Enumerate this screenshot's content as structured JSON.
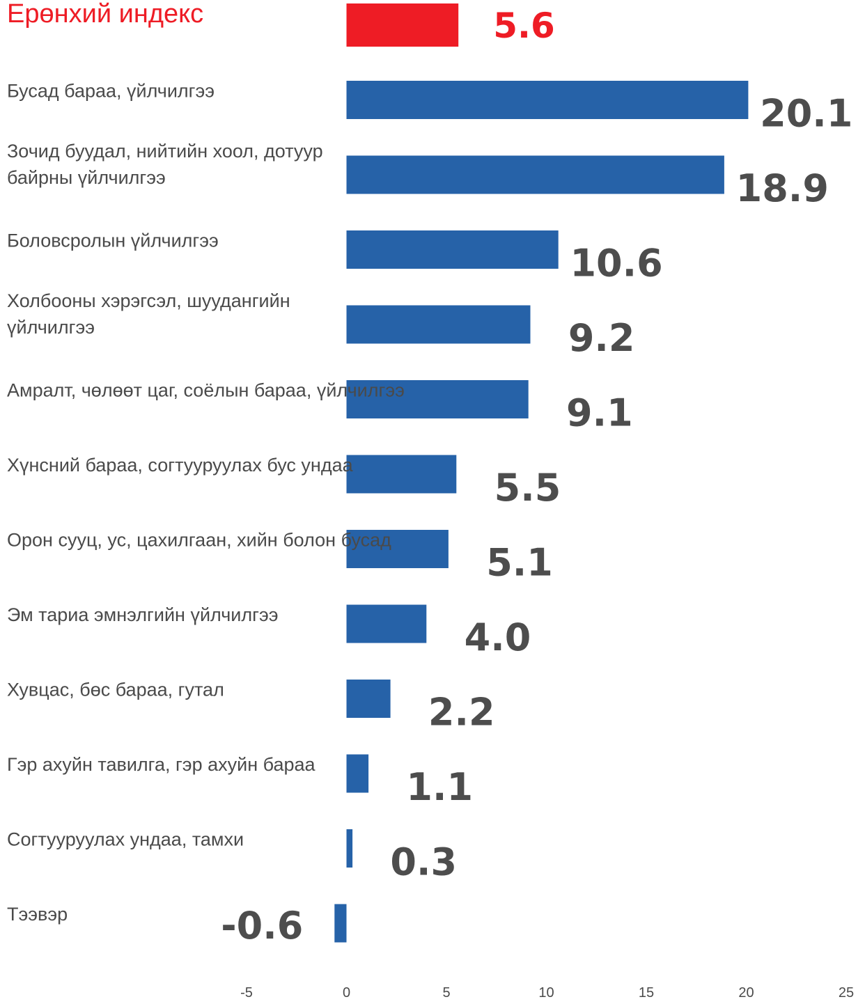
{
  "chart_data": {
    "type": "bar",
    "orientation": "horizontal",
    "categories": [
      "Ерөнхий индекс",
      "Бусад бараа, үйлчилгээ",
      "Зочид буудал, нийтийн хоол, дотуур байрны үйлчилгээ",
      "Боловсролын үйлчилгээ",
      "Холбооны хэрэгсэл, шуудангийн үйлчилгээ",
      "Амралт, чөлөөт цаг, соёлын бараа,  үйлчилгээ",
      "Хүнсний бараа, согтууруулах бус ундаа",
      "Орон сууц, ус, цахилгаан, хийн болон бусад",
      "Эм тариа эмнэлгийн үйлчилгээ",
      "Хувцас, бөс бараа, гутал",
      "Гэр ахуйн тавилга, гэр ахуйн бараа",
      "Согтууруулах  ундаа, тамхи",
      "Тээвэр"
    ],
    "category_lines": [
      [
        "Ерөнхий индекс"
      ],
      [
        "Бусад бараа, үйлчилгээ"
      ],
      [
        "Зочид буудал, нийтийн хоол, дотуур",
        "байрны үйлчилгээ"
      ],
      [
        "Боловсролын үйлчилгээ"
      ],
      [
        "Холбооны хэрэгсэл, шуудангийн",
        "үйлчилгээ"
      ],
      [
        "Амралт, чөлөөт цаг, соёлын бараа,  үйлчилгээ"
      ],
      [
        "Хүнсний бараа, согтууруулах бус ундаа"
      ],
      [
        "Орон сууц, ус, цахилгаан, хийн болон бусад"
      ],
      [
        "Эм тариа эмнэлгийн үйлчилгээ"
      ],
      [
        "Хувцас, бөс бараа, гутал"
      ],
      [
        "Гэр ахуйн тавилга, гэр ахуйн бараа"
      ],
      [
        "Согтууруулах  ундаа, тамхи"
      ],
      [
        "Тээвэр"
      ]
    ],
    "values": [
      5.6,
      20.1,
      18.9,
      10.6,
      9.2,
      9.1,
      5.5,
      5.1,
      4.0,
      2.2,
      1.1,
      0.3,
      -0.6
    ],
    "value_labels": [
      "5.6",
      "20.1",
      "18.9",
      "10.6",
      "9.2",
      "9.1",
      "5.5",
      "5.1",
      "4.0",
      "2.2",
      "1.1",
      "0.3",
      "-0.6"
    ],
    "highlight_index": 0,
    "xlim": [
      -5,
      25
    ],
    "xticks": [
      -5,
      0,
      5,
      10,
      15,
      20,
      25
    ],
    "xtick_labels": [
      "-5",
      "0",
      "5",
      "10",
      "15",
      "20",
      "25"
    ],
    "grid": false,
    "legend": "none",
    "title": "",
    "xlabel": "",
    "ylabel": ""
  },
  "colors": {
    "bar": "#2662a8",
    "highlight": "#ee1c25",
    "text": "#4a4a4a",
    "value_text": "#4d4d4d",
    "background": "#ffffff"
  }
}
